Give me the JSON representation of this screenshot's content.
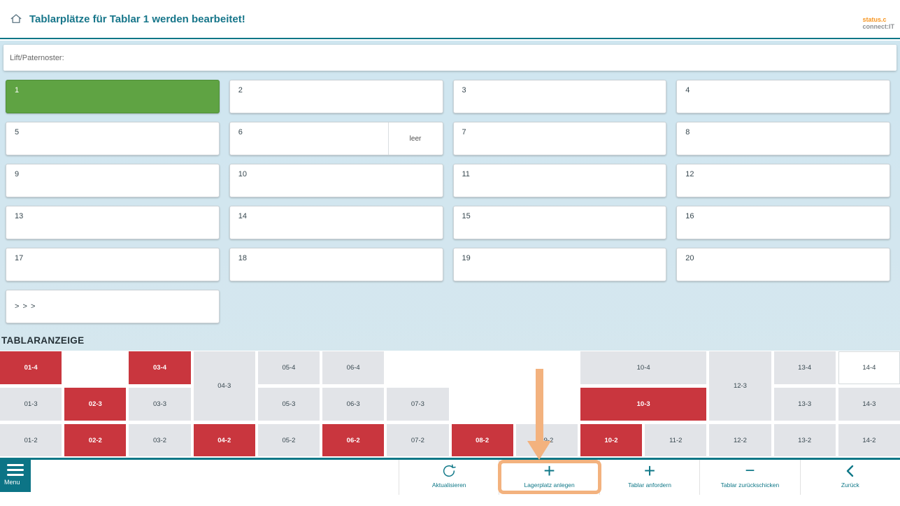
{
  "header": {
    "title": "Tablarplätze für Tablar 1 werden bearbeitet!",
    "logo_line1": "status.c",
    "logo_line2": "connect:IT"
  },
  "lift": {
    "label": "Lift/Paternoster:"
  },
  "slots": {
    "numbers": [
      "1",
      "2",
      "3",
      "4",
      "5",
      "6",
      "7",
      "8",
      "9",
      "10",
      "11",
      "12",
      "13",
      "14",
      "15",
      "16",
      "17",
      "18",
      "19",
      "20"
    ],
    "active_slot": "1",
    "empty_tag_slot": "6",
    "empty_tag_label": "leer",
    "more_label": "> > >"
  },
  "tablar": {
    "section_title": "TABLARANZEIGE",
    "cells": [
      {
        "label": "01-4",
        "col": 1,
        "row": 1,
        "state": "red"
      },
      {
        "label": "03-4",
        "col": 3,
        "row": 1,
        "state": "red"
      },
      {
        "label": "04-3",
        "col": 4,
        "row": 1,
        "rowspan": 2,
        "state": "gray"
      },
      {
        "label": "05-4",
        "col": 5,
        "row": 1,
        "state": "gray"
      },
      {
        "label": "06-4",
        "col": 6,
        "row": 1,
        "state": "gray"
      },
      {
        "label": "10-4",
        "col": 10,
        "row": 1,
        "colspan": 2,
        "state": "gray"
      },
      {
        "label": "12-3",
        "col": 12,
        "row": 1,
        "rowspan": 2,
        "state": "gray"
      },
      {
        "label": "13-4",
        "col": 13,
        "row": 1,
        "state": "gray"
      },
      {
        "label": "14-4",
        "col": 14,
        "row": 1,
        "state": "white"
      },
      {
        "label": "01-3",
        "col": 1,
        "row": 2,
        "state": "gray"
      },
      {
        "label": "02-3",
        "col": 2,
        "row": 2,
        "state": "red"
      },
      {
        "label": "03-3",
        "col": 3,
        "row": 2,
        "state": "gray"
      },
      {
        "label": "05-3",
        "col": 5,
        "row": 2,
        "state": "gray"
      },
      {
        "label": "06-3",
        "col": 6,
        "row": 2,
        "state": "gray"
      },
      {
        "label": "07-3",
        "col": 7,
        "row": 2,
        "state": "gray"
      },
      {
        "label": "10-3",
        "col": 10,
        "row": 2,
        "colspan": 2,
        "state": "red"
      },
      {
        "label": "13-3",
        "col": 13,
        "row": 2,
        "state": "gray"
      },
      {
        "label": "14-3",
        "col": 14,
        "row": 2,
        "state": "gray"
      },
      {
        "label": "01-2",
        "col": 1,
        "row": 3,
        "state": "gray"
      },
      {
        "label": "02-2",
        "col": 2,
        "row": 3,
        "state": "red"
      },
      {
        "label": "03-2",
        "col": 3,
        "row": 3,
        "state": "gray"
      },
      {
        "label": "04-2",
        "col": 4,
        "row": 3,
        "state": "red"
      },
      {
        "label": "05-2",
        "col": 5,
        "row": 3,
        "state": "gray"
      },
      {
        "label": "06-2",
        "col": 6,
        "row": 3,
        "state": "red"
      },
      {
        "label": "07-2",
        "col": 7,
        "row": 3,
        "state": "gray"
      },
      {
        "label": "08-2",
        "col": 8,
        "row": 3,
        "state": "red"
      },
      {
        "label": "09-2",
        "col": 9,
        "row": 3,
        "state": "gray"
      },
      {
        "label": "10-2",
        "col": 10,
        "row": 3,
        "state": "red"
      },
      {
        "label": "11-2",
        "col": 11,
        "row": 3,
        "state": "gray"
      },
      {
        "label": "12-2",
        "col": 12,
        "row": 3,
        "state": "gray"
      },
      {
        "label": "13-2",
        "col": 13,
        "row": 3,
        "state": "gray"
      },
      {
        "label": "14-2",
        "col": 14,
        "row": 3,
        "state": "gray"
      }
    ]
  },
  "toolbar": {
    "menu_label": "Menu",
    "buttons": [
      {
        "label": "Aktualisieren",
        "icon": "refresh-icon"
      },
      {
        "label": "Lagerplatz anlegen",
        "icon": "plus-icon",
        "highlighted": true
      },
      {
        "label": "Tablar anfordern",
        "icon": "plus-icon"
      },
      {
        "label": "Tablar zurückschicken",
        "icon": "minus-icon"
      },
      {
        "label": "Zurück",
        "icon": "chevron-left-icon"
      }
    ]
  },
  "annotations": {
    "arrow_target_cell": "09-2",
    "highlighted_button": "Lagerplatz anlegen"
  },
  "colors": {
    "accent_teal": "#0e7787",
    "active_green": "#5fa343",
    "occupied_red": "#c9363e",
    "cell_gray": "#e2e4e8",
    "highlight_orange": "#f3b27e",
    "logo_orange": "#f7941e"
  }
}
